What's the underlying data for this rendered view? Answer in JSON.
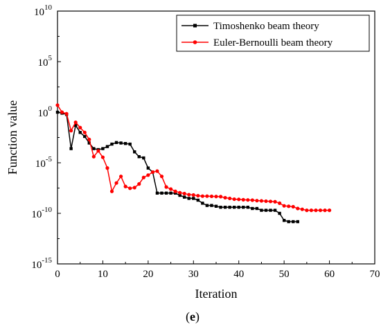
{
  "chart_data": {
    "type": "line",
    "xlabel": "Iteration",
    "ylabel": "Function value",
    "caption_open": "(",
    "caption_letter": "e",
    "caption_close": ")",
    "xlim": [
      0,
      70
    ],
    "ylim_log10": [
      -15,
      10
    ],
    "y_scale": "log",
    "x_ticks": [
      0,
      10,
      20,
      30,
      40,
      50,
      60,
      70
    ],
    "x_tick_labels": [
      "0",
      "10",
      "20",
      "30",
      "40",
      "50",
      "60",
      "70"
    ],
    "y_ticks": [
      {
        "base": "10",
        "exp": "10",
        "log": 10
      },
      {
        "base": "10",
        "exp": "5",
        "log": 5
      },
      {
        "base": "10",
        "exp": "0",
        "log": 0
      },
      {
        "base": "10",
        "exp": "-5",
        "log": -5
      },
      {
        "base": "10",
        "exp": "-10",
        "log": -10
      },
      {
        "base": "10",
        "exp": "-15",
        "log": -15
      }
    ],
    "legend_position": "top-right",
    "series": [
      {
        "name": "Timoshenko beam theory",
        "color": "#000000",
        "marker": "square",
        "x": [
          0,
          1,
          2,
          3,
          4,
          5,
          6,
          7,
          8,
          9,
          10,
          11,
          12,
          13,
          14,
          15,
          16,
          17,
          18,
          19,
          20,
          21,
          22,
          23,
          24,
          25,
          26,
          27,
          28,
          29,
          30,
          31,
          32,
          33,
          34,
          35,
          36,
          37,
          38,
          39,
          40,
          41,
          42,
          43,
          44,
          45,
          46,
          47,
          48,
          49,
          50,
          51,
          52,
          53
        ],
        "y": [
          1.0,
          0.8,
          0.6,
          0.00025,
          0.05,
          0.01,
          0.004,
          0.0009,
          0.00025,
          0.0002,
          0.00025,
          0.0004,
          0.0007,
          0.001,
          0.0009,
          0.0008,
          0.0007,
          0.00012,
          4e-05,
          3e-05,
          3e-06,
          1.2e-06,
          1e-08,
          1e-08,
          1e-08,
          1e-08,
          1e-08,
          6e-09,
          4e-09,
          3e-09,
          3e-09,
          2e-09,
          1e-09,
          6e-10,
          6e-10,
          5e-10,
          4e-10,
          4e-10,
          4e-10,
          4e-10,
          4e-10,
          4e-10,
          4e-10,
          3e-10,
          3e-10,
          2e-10,
          2e-10,
          2e-10,
          2e-10,
          1e-10,
          2e-11,
          1.5e-11,
          1.5e-11,
          1.5e-11
        ]
      },
      {
        "name": "Euler-Bernoulli beam theory",
        "color": "#ff0000",
        "marker": "circle",
        "x": [
          0,
          1,
          2,
          3,
          4,
          5,
          6,
          7,
          8,
          9,
          10,
          11,
          12,
          13,
          14,
          15,
          16,
          17,
          18,
          19,
          20,
          21,
          22,
          23,
          24,
          25,
          26,
          27,
          28,
          29,
          30,
          31,
          32,
          33,
          34,
          35,
          36,
          37,
          38,
          39,
          40,
          41,
          42,
          43,
          44,
          45,
          46,
          47,
          48,
          49,
          50,
          51,
          52,
          53,
          54,
          55,
          56,
          57,
          58,
          59,
          60
        ],
        "y": [
          5.0,
          1.0,
          0.7,
          0.015,
          0.1,
          0.03,
          0.01,
          0.002,
          4e-05,
          0.00015,
          3.5e-05,
          3e-06,
          1.5e-08,
          1e-07,
          4.5e-07,
          4.5e-08,
          3e-08,
          3.5e-08,
          8e-08,
          3.5e-07,
          6e-07,
          1.2e-06,
          1.5e-06,
          4.5e-07,
          4e-08,
          2.5e-08,
          1.5e-08,
          1.1e-08,
          9e-09,
          7e-09,
          6.5e-09,
          5.5e-09,
          5e-09,
          5e-09,
          4.8e-09,
          4.6e-09,
          4.5e-09,
          3.5e-09,
          3e-09,
          2.5e-09,
          2.4e-09,
          2.2e-09,
          2.1e-09,
          2e-09,
          1.8e-09,
          1.7e-09,
          1.6e-09,
          1.5e-09,
          1.4e-09,
          1e-09,
          5.5e-10,
          5e-10,
          4.5e-10,
          3e-10,
          2.5e-10,
          2e-10,
          2e-10,
          2e-10,
          2e-10,
          2e-10,
          2e-10
        ]
      }
    ]
  }
}
